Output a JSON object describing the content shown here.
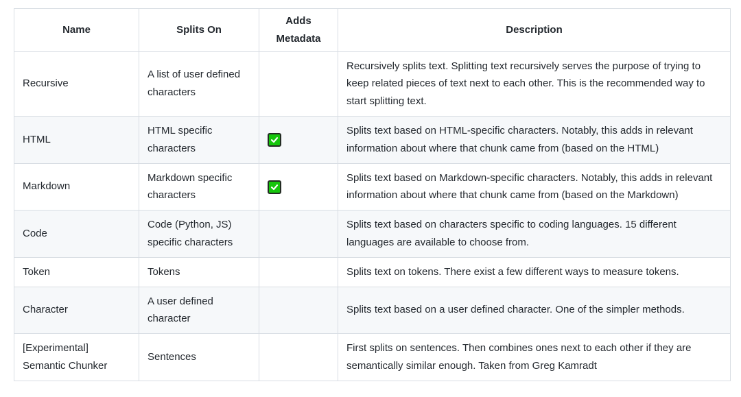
{
  "table": {
    "columns": [
      {
        "label": "Name"
      },
      {
        "label": "Splits On"
      },
      {
        "label": "Adds Metadata"
      },
      {
        "label": "Description"
      }
    ],
    "rows": [
      {
        "name": "Recursive",
        "splits_on": "A list of user defined characters",
        "adds_metadata": false,
        "description": "Recursively splits text. Splitting text recursively serves the purpose of trying to keep related pieces of text next to each other. This is the recommended way to start splitting text."
      },
      {
        "name": "HTML",
        "splits_on": "HTML specific characters",
        "adds_metadata": true,
        "description": "Splits text based on HTML-specific characters. Notably, this adds in relevant information about where that chunk came from (based on the HTML)"
      },
      {
        "name": "Markdown",
        "splits_on": "Markdown specific characters",
        "adds_metadata": true,
        "description": "Splits text based on Markdown-specific characters. Notably, this adds in relevant information about where that chunk came from (based on the Markdown)"
      },
      {
        "name": "Code",
        "splits_on": "Code (Python, JS) specific characters",
        "adds_metadata": false,
        "description": "Splits text based on characters specific to coding languages. 15 different languages are available to choose from."
      },
      {
        "name": "Token",
        "splits_on": "Tokens",
        "adds_metadata": false,
        "description": "Splits text on tokens. There exist a few different ways to measure tokens."
      },
      {
        "name": "Character",
        "splits_on": "A user defined character",
        "adds_metadata": false,
        "description": "Splits text based on a user defined character. One of the simpler methods."
      },
      {
        "name": "[Experimental] Semantic Chunker",
        "splits_on": "Sentences",
        "adds_metadata": false,
        "description": "First splits on sentences. Then combines ones next to each other if they are semantically similar enough. Taken from Greg Kamradt"
      }
    ],
    "icons": {
      "adds_metadata_true": "green-checkbox-icon"
    },
    "colors": {
      "check_green": "#16c60c",
      "check_border": "#232b23",
      "check_mark": "#ffffff",
      "row_stripe": "#f6f8fa",
      "border": "#d8dde3",
      "text": "#24292f"
    }
  }
}
